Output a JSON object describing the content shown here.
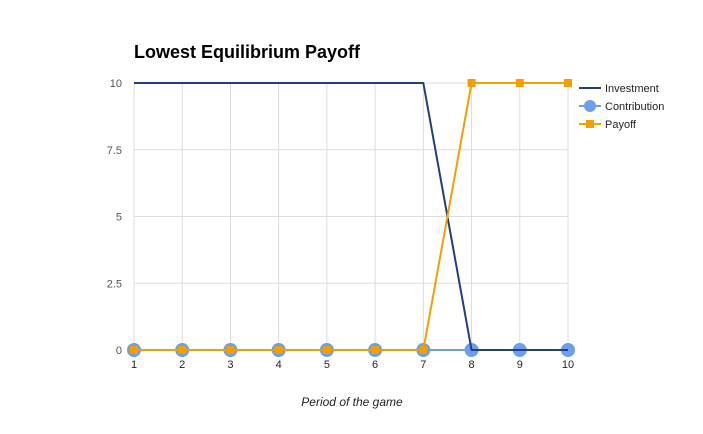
{
  "chart_data": {
    "type": "line",
    "title": "Lowest Equilibrium Payoff",
    "xlabel": "Period of the game",
    "ylabel": "",
    "x": [
      1,
      2,
      3,
      4,
      5,
      6,
      7,
      8,
      9,
      10
    ],
    "x_tick_labels": [
      "1",
      "2",
      "3",
      "4",
      "5",
      "6",
      "7",
      "8",
      "9",
      "10"
    ],
    "y_ticks": [
      0,
      2.5,
      5,
      7.5,
      10
    ],
    "y_tick_labels": [
      "0",
      "2.5",
      "5",
      "7.5",
      "10"
    ],
    "ylim": [
      0,
      10
    ],
    "grid": true,
    "legend_position": "right",
    "series": [
      {
        "name": "Investment",
        "color": "#213f7d",
        "marker": "none",
        "values": [
          10,
          10,
          10,
          10,
          10,
          10,
          10,
          0,
          0,
          0
        ]
      },
      {
        "name": "Contribution",
        "color": "#6d9eeb",
        "marker": "circle",
        "values": [
          0,
          0,
          0,
          0,
          0,
          0,
          0,
          0,
          0,
          0
        ]
      },
      {
        "name": "Payoff",
        "color": "#f1a000",
        "marker": "square",
        "values": [
          0,
          0,
          0,
          0,
          0,
          0,
          0,
          10,
          10,
          10
        ]
      }
    ]
  }
}
